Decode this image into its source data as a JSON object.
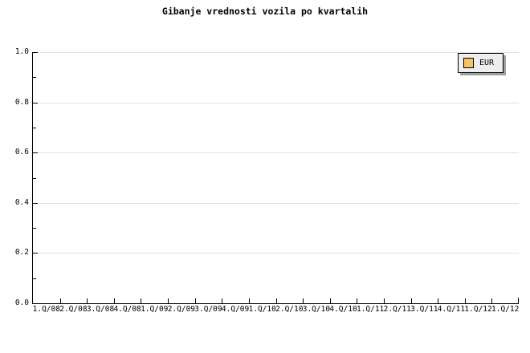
{
  "title": "Gibanje vrednosti vozila po kvartalih",
  "legend": {
    "position": "top-right",
    "items": [
      {
        "label": "EUR",
        "color": "#f6c468"
      }
    ]
  },
  "colors": {
    "background": "#ffffff",
    "axis": "#000000",
    "text": "#000000",
    "grid": "#e0e0e0",
    "legend_bg": "#eeeeee",
    "legend_border": "#000000",
    "legend_shadow": "#a0a0a0",
    "series_eur": "#f6c468"
  },
  "chart_data": {
    "type": "line",
    "title": "Gibanje vrednosti vozila po kvartalih",
    "categories": [
      "1.Q/08",
      "2.Q/08",
      "3.Q/08",
      "4.Q/08",
      "1.Q/09",
      "2.Q/09",
      "3.Q/09",
      "4.Q/09",
      "1.Q/10",
      "2.Q/10",
      "3.Q/10",
      "4.Q/10",
      "1.Q/11",
      "2.Q/11",
      "3.Q/11",
      "4.Q/11",
      "1.Q/12",
      "1.Q/12"
    ],
    "series": [
      {
        "name": "EUR",
        "color": "#f6c468",
        "values": []
      }
    ],
    "xlabel": "",
    "ylabel": "",
    "ylim": [
      0.0,
      1.0
    ],
    "y_tick_labels": [
      "1.0",
      "0.8",
      "0.6",
      "0.4",
      "0.2",
      "0.0"
    ],
    "y_major_tick_interval": 0.2,
    "y_minor_tick_interval": 0.1,
    "grid": "horizontal-major",
    "legend_position": "top-right"
  }
}
